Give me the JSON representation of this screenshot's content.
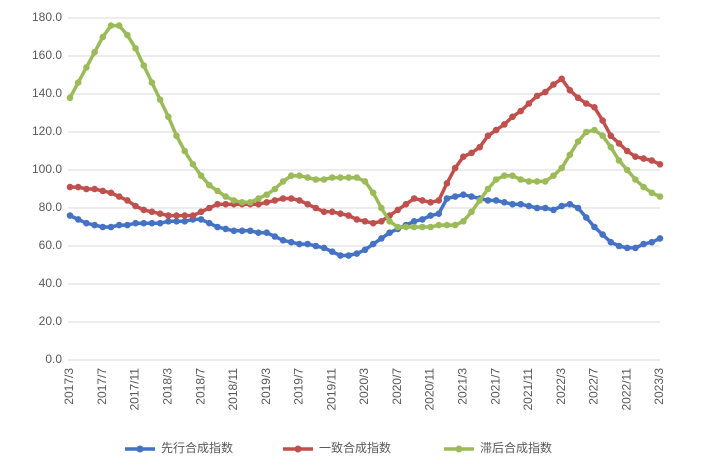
{
  "chart_data": {
    "type": "line",
    "categories": [
      "2017/3",
      null,
      null,
      null,
      "2017/7",
      null,
      null,
      null,
      "2017/11",
      null,
      null,
      null,
      "2018/3",
      null,
      null,
      null,
      "2018/7",
      null,
      null,
      null,
      "2018/11",
      null,
      null,
      null,
      "2019/3",
      null,
      null,
      null,
      "2019/7",
      null,
      null,
      null,
      "2019/11",
      null,
      null,
      null,
      "2020/3",
      null,
      null,
      null,
      "2020/7",
      null,
      null,
      null,
      "2020/11",
      null,
      null,
      null,
      "2021/3",
      null,
      null,
      null,
      "2021/7",
      null,
      null,
      null,
      "2021/11",
      null,
      null,
      null,
      "2022/3",
      null,
      null,
      null,
      "2022/7",
      null,
      null,
      null,
      "2022/11",
      null,
      null,
      null,
      "2023/3"
    ],
    "series": [
      {
        "name": "先行合成指数",
        "color": "#4472c4",
        "values": [
          76,
          74,
          72,
          71,
          70,
          70,
          71,
          71,
          72,
          72,
          72,
          72,
          73,
          73,
          73,
          74,
          74,
          72,
          70,
          69,
          68,
          68,
          68,
          67,
          67,
          65,
          63,
          62,
          61,
          61,
          60,
          59,
          57,
          55,
          55,
          56,
          58,
          61,
          64,
          67,
          69,
          71,
          73,
          74,
          76,
          77,
          85,
          86,
          87,
          86,
          85,
          84,
          84,
          83,
          82,
          82,
          81,
          80,
          80,
          79,
          81,
          82,
          80,
          75,
          70,
          66,
          62,
          60,
          59,
          59,
          61,
          62,
          64
        ]
      },
      {
        "name": "一致合成指数",
        "color": "#c0504d",
        "values": [
          91,
          91,
          90,
          90,
          89,
          88,
          86,
          84,
          81,
          79,
          78,
          77,
          76,
          76,
          76,
          76,
          78,
          80,
          82,
          82,
          82,
          82,
          82,
          82,
          83,
          84,
          85,
          85,
          84,
          82,
          80,
          78,
          78,
          77,
          76,
          74,
          73,
          72,
          73,
          76,
          79,
          82,
          85,
          84,
          83,
          84,
          93,
          101,
          107,
          109,
          112,
          118,
          121,
          124,
          128,
          131,
          135,
          139,
          141,
          145,
          148,
          142,
          138,
          135,
          133,
          126,
          118,
          114,
          110,
          107,
          106,
          105,
          103
        ]
      },
      {
        "name": "滞后合成指数",
        "color": "#9bbb59",
        "values": [
          138,
          146,
          154,
          162,
          170,
          176,
          176,
          171,
          164,
          155,
          146,
          137,
          128,
          118,
          110,
          103,
          97,
          92,
          89,
          86,
          84,
          83,
          83,
          85,
          87,
          90,
          94,
          97,
          97,
          96,
          95,
          95,
          96,
          96,
          96,
          96,
          94,
          88,
          80,
          73,
          70,
          70,
          70,
          70,
          70,
          71,
          71,
          71,
          73,
          78,
          84,
          90,
          95,
          97,
          97,
          95,
          94,
          94,
          94,
          97,
          101,
          108,
          115,
          120,
          121,
          118,
          112,
          105,
          100,
          95,
          91,
          88,
          86
        ]
      }
    ],
    "ylim": [
      0,
      180
    ],
    "yticks": [
      {
        "value": 0,
        "label": "0.0"
      },
      {
        "value": 20,
        "label": "20.0"
      },
      {
        "value": 40,
        "label": "40.0"
      },
      {
        "value": 60,
        "label": "60.0"
      },
      {
        "value": 80,
        "label": "80.0"
      },
      {
        "value": 100,
        "label": "100.0"
      },
      {
        "value": 120,
        "label": "120.0"
      },
      {
        "value": 140,
        "label": "140.0"
      },
      {
        "value": 160,
        "label": "160.0"
      },
      {
        "value": 180,
        "label": "180.0"
      }
    ],
    "grid": true,
    "legend": "bottom"
  }
}
